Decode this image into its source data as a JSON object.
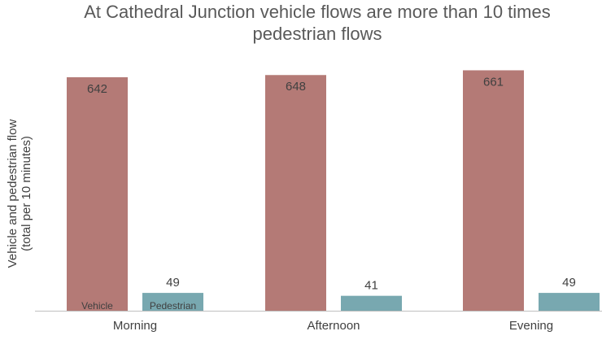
{
  "chart_data": {
    "type": "bar",
    "title": "At Cathedral Junction vehicle flows are more than 10 times pedestrian flows",
    "y_label": [
      "Vehicle and pedestrian flow",
      "(total per 10 minutes)"
    ],
    "categories": [
      "Morning",
      "Afternoon",
      "Evening"
    ],
    "series": [
      {
        "name": "Vehicle",
        "color": "#b47a76",
        "values": [
          642,
          648,
          661
        ]
      },
      {
        "name": "Pedestrian",
        "color": "#78a8b0",
        "values": [
          49,
          41,
          49
        ]
      }
    ],
    "ylim": [
      0,
      700
    ]
  }
}
